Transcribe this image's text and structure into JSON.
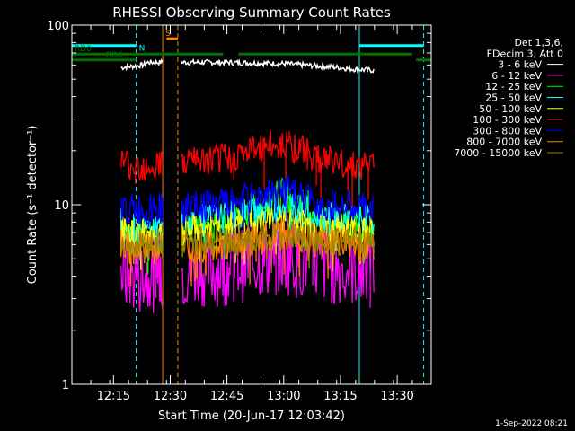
{
  "chart_data": {
    "type": "line",
    "title": "RHESSI Observing Summary Count Rates",
    "xlabel": "Start Time (20-Jun-17 12:03:42)",
    "ylabel": "Count Rate (s⁻¹ detector⁻¹)",
    "yscale": "log",
    "ylim": [
      1,
      100
    ],
    "xlim_minutes": [
      "12:04",
      "13:39"
    ],
    "x_ticks": [
      "12:15",
      "12:30",
      "12:45",
      "13:00",
      "13:15",
      "13:30"
    ],
    "y_ticks": [
      "1",
      "10",
      "100"
    ],
    "legend": {
      "placement": "right",
      "header": [
        "Det 1,3,6,",
        "FDecim 3, Att 0"
      ]
    },
    "series": [
      {
        "name": "3 - 6 keV",
        "color": "#ffffff",
        "segments": [
          {
            "x": [
              "12:17",
              "12:23",
              "12:24",
              "12:28"
            ],
            "y": [
              58,
              60,
              62,
              62
            ]
          },
          {
            "x": [
              "12:33",
              "12:45",
              "13:00",
              "13:15",
              "13:18",
              "13:24"
            ],
            "y": [
              62,
              62,
              61,
              58,
              57,
              56
            ]
          }
        ]
      },
      {
        "name": "6 - 12 keV",
        "color": "#ff00ff",
        "segments": [
          {
            "x": [
              "12:17",
              "12:22",
              "12:28"
            ],
            "y": [
              4.2,
              4.0,
              4.2
            ]
          },
          {
            "x": [
              "12:33",
              "12:45",
              "12:55",
              "13:00",
              "13:10",
              "13:24"
            ],
            "y": [
              4.3,
              4.5,
              5.0,
              5.2,
              4.6,
              4.3
            ]
          }
        ]
      },
      {
        "name": "12 - 25 keV",
        "color": "#00ff00",
        "segments": [
          {
            "x": [
              "12:17",
              "12:22",
              "12:28"
            ],
            "y": [
              6.5,
              6.2,
              6.5
            ]
          },
          {
            "x": [
              "12:33",
              "12:45",
              "12:55",
              "13:00",
              "13:10",
              "13:24"
            ],
            "y": [
              7.0,
              8.0,
              10.5,
              11.5,
              8.5,
              7.0
            ]
          }
        ]
      },
      {
        "name": "25 - 50 keV",
        "color": "#00ffff",
        "segments": [
          {
            "x": [
              "12:17",
              "12:22",
              "12:28"
            ],
            "y": [
              7.5,
              7.2,
              7.5
            ]
          },
          {
            "x": [
              "12:33",
              "12:45",
              "12:55",
              "13:00",
              "13:10",
              "13:24"
            ],
            "y": [
              8.0,
              8.5,
              9.5,
              10.0,
              8.5,
              8.0
            ]
          }
        ]
      },
      {
        "name": "50 - 100 keV",
        "color": "#ffff00",
        "segments": [
          {
            "x": [
              "12:17",
              "12:22",
              "12:28"
            ],
            "y": [
              7.0,
              6.8,
              7.0
            ]
          },
          {
            "x": [
              "12:33",
              "12:45",
              "12:55",
              "13:00",
              "13:10",
              "13:24"
            ],
            "y": [
              7.2,
              7.5,
              8.0,
              8.2,
              7.5,
              7.2
            ]
          }
        ]
      },
      {
        "name": "100 - 300 keV",
        "color": "#ff0000",
        "segments": [
          {
            "x": [
              "12:17",
              "12:22",
              "12:28"
            ],
            "y": [
              17,
              16.5,
              17
            ]
          },
          {
            "x": [
              "12:33",
              "12:45",
              "12:55",
              "13:00",
              "13:10",
              "13:24"
            ],
            "y": [
              17,
              18,
              21,
              22,
              18,
              16
            ]
          }
        ]
      },
      {
        "name": "300 - 800 keV",
        "color": "#0000ff",
        "segments": [
          {
            "x": [
              "12:17",
              "12:22",
              "12:28"
            ],
            "y": [
              9.5,
              9.3,
              9.5
            ]
          },
          {
            "x": [
              "12:33",
              "12:45",
              "12:55",
              "13:00",
              "13:10",
              "13:24"
            ],
            "y": [
              9.5,
              10,
              11.5,
              12,
              10,
              9.5
            ]
          }
        ]
      },
      {
        "name": "800 - 7000 keV",
        "color": "#ff8000",
        "segments": [
          {
            "x": [
              "12:17",
              "12:22",
              "12:28"
            ],
            "y": [
              5.8,
              5.6,
              5.8
            ]
          },
          {
            "x": [
              "12:33",
              "12:45",
              "12:55",
              "13:00",
              "13:10",
              "13:24"
            ],
            "y": [
              5.8,
              6.0,
              6.5,
              6.8,
              6.2,
              5.8
            ]
          }
        ]
      },
      {
        "name": "7000 - 15000 keV",
        "color": "#a08000",
        "segments": [
          {
            "x": [
              "12:17",
              "12:22",
              "12:28"
            ],
            "y": [
              6.2,
              6.0,
              6.2
            ]
          },
          {
            "x": [
              "12:33",
              "12:45",
              "12:55",
              "13:00",
              "13:10",
              "13:24"
            ],
            "y": [
              6.2,
              6.3,
              6.6,
              6.8,
              6.4,
              6.2
            ]
          }
        ]
      }
    ],
    "vertical_lines": [
      {
        "x": "12:04",
        "color": "#00ffff",
        "style": "solid"
      },
      {
        "x": "12:21",
        "color": "#00ffff",
        "style": "dashed"
      },
      {
        "x": "12:28",
        "color": "#ff8000",
        "style": "solid"
      },
      {
        "x": "12:32",
        "color": "#ff8000",
        "style": "dashed"
      },
      {
        "x": "13:20",
        "color": "#00ffff",
        "style": "solid"
      },
      {
        "x": "13:37",
        "color": "#00ffff",
        "style": "dashed"
      }
    ],
    "flag_bars": [
      {
        "label": "",
        "color": "#00ffff",
        "y": 77,
        "segments": [
          [
            "12:04",
            "12:21"
          ],
          [
            "13:20",
            "13:37"
          ]
        ]
      },
      {
        "label": "S",
        "color": "#ff8000",
        "y": 84,
        "segments": [
          [
            "12:29",
            "12:32"
          ]
        ]
      },
      {
        "label": "N",
        "color": "#00ffff",
        "y": 77,
        "segments": []
      },
      {
        "label": "RD0",
        "color": "#007000",
        "y": 69,
        "segments": [
          [
            "12:04",
            "12:44"
          ],
          [
            "12:48",
            "13:34"
          ]
        ]
      },
      {
        "label": "RD6",
        "color": "#007000",
        "y": 64,
        "segments": [
          [
            "12:04",
            "12:21"
          ],
          [
            "13:35",
            "13:39"
          ]
        ]
      }
    ]
  },
  "footer": {
    "date": "1-Sep-2022 08:21"
  }
}
